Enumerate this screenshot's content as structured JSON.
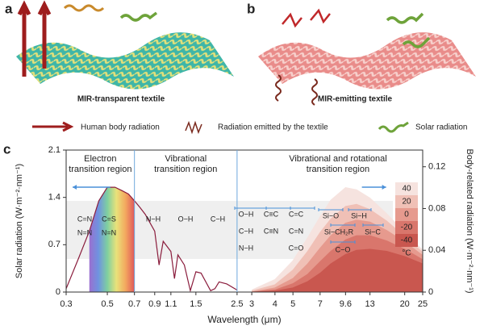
{
  "panels": [
    {
      "letter": "a",
      "caption": "MIR-transparent textile"
    },
    {
      "letter": "b",
      "caption": "MIR-emitting textile"
    }
  ],
  "legend": [
    "Human body radiation",
    "Radiation emitted by the textile",
    "Solar radiation"
  ],
  "chart_data": {
    "type": "spectrum",
    "letter": "c",
    "xlabel": "Wavelength (μm)",
    "ylabel": "Solar radiation (W·m⁻²·nm⁻¹)",
    "y2label": "Body-related radiation (W·m⁻²·nm⁻¹)",
    "xscale": "log",
    "xlim": [
      0.3,
      25
    ],
    "xticks": [
      0.3,
      0.5,
      0.7,
      0.9,
      1.1,
      1.5,
      2.5,
      3,
      4,
      5,
      7,
      9.6,
      13,
      20,
      25
    ],
    "ylim": [
      0,
      2.1
    ],
    "yticks": [
      0,
      0.7,
      1.4,
      2.1
    ],
    "y2lim": [
      0,
      0.136
    ],
    "y2ticks": [
      0,
      0.04,
      0.08,
      0.12
    ],
    "region_bounds": [
      0.7,
      2.5
    ],
    "regions": [
      [
        "Electron",
        "transition region"
      ],
      [
        "Vibrational",
        "transition region"
      ],
      [
        "Vibrational and rotational",
        "transition region"
      ]
    ],
    "bonds": [
      "C=N",
      "N=N",
      "C=S",
      "N=N",
      "N−H",
      "O−H",
      "C−H",
      "O−H",
      "C≡C",
      "C=C",
      "C−H",
      "C≡N",
      "C=N",
      "N−H",
      "C=O",
      "Si−O",
      "Si−H",
      "Si−CH₂R",
      "Si−C",
      "C−O"
    ],
    "temperature_unit": "°C",
    "solar": {
      "color": "#8a1c3c",
      "x": [
        0.3,
        0.35,
        0.4,
        0.45,
        0.5,
        0.55,
        0.6,
        0.65,
        0.7,
        0.75,
        0.8,
        0.9,
        0.95,
        1.0,
        1.1,
        1.15,
        1.2,
        1.3,
        1.4,
        1.5,
        1.6,
        1.8,
        1.9,
        2.0,
        2.2,
        2.5
      ],
      "values": [
        0.05,
        0.5,
        0.9,
        1.35,
        1.55,
        1.55,
        1.5,
        1.45,
        1.35,
        1.25,
        1.15,
        0.9,
        0.4,
        0.75,
        0.6,
        0.2,
        0.55,
        0.4,
        0.02,
        0.3,
        0.28,
        0.02,
        0.05,
        0.15,
        0.12,
        0.03
      ]
    },
    "x": [
      3,
      4,
      5,
      6,
      7,
      8,
      9.6,
      11,
      13,
      16,
      20,
      25
    ],
    "series": [
      {
        "name": "40",
        "color": "#f6e3df",
        "axis": "y2",
        "values": [
          0.002,
          0.012,
          0.03,
          0.052,
          0.072,
          0.088,
          0.1,
          0.098,
          0.09,
          0.075,
          0.057,
          0.04
        ]
      },
      {
        "name": "20",
        "color": "#f0c0b6",
        "axis": "y2",
        "values": [
          0.001,
          0.007,
          0.021,
          0.039,
          0.057,
          0.07,
          0.082,
          0.084,
          0.079,
          0.068,
          0.053,
          0.038
        ]
      },
      {
        "name": "0",
        "color": "#e69a8e",
        "axis": "y2",
        "values": [
          0,
          0.004,
          0.013,
          0.027,
          0.042,
          0.054,
          0.066,
          0.069,
          0.067,
          0.059,
          0.048,
          0.035
        ]
      },
      {
        "name": "-20",
        "color": "#d9766c",
        "axis": "y2",
        "values": [
          0,
          0.002,
          0.008,
          0.017,
          0.029,
          0.039,
          0.05,
          0.054,
          0.054,
          0.049,
          0.041,
          0.031
        ]
      },
      {
        "name": "-40",
        "color": "#c9574f",
        "axis": "y2",
        "values": [
          0,
          0.001,
          0.004,
          0.01,
          0.018,
          0.027,
          0.036,
          0.04,
          0.041,
          0.039,
          0.034,
          0.027
        ]
      }
    ]
  }
}
